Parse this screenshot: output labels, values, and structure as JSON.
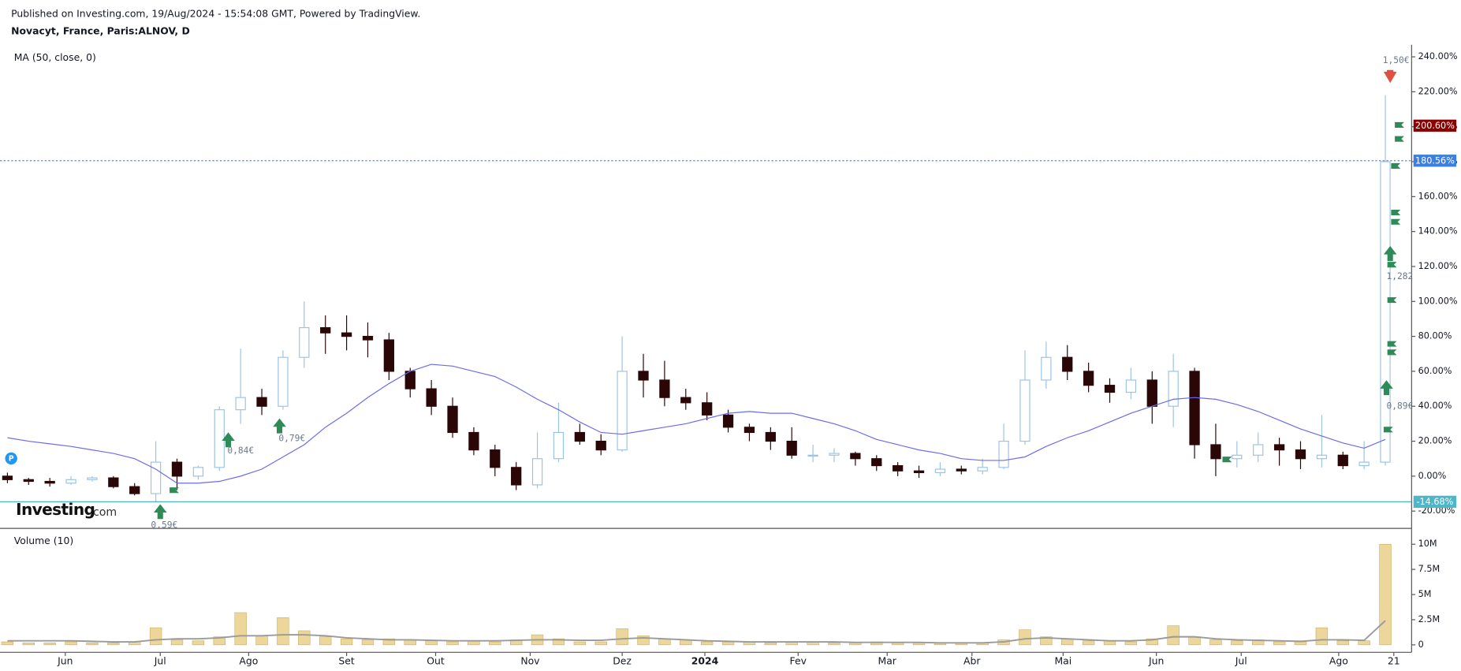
{
  "header": {
    "published": "Published on Investing.com, 19/Aug/2024 - 15:54:08 GMT, Powered by TradingView.",
    "logo": "Investing",
    "logo_suffix": ".com",
    "badge": "P"
  },
  "chart_data": [
    {
      "type": "candlestick",
      "title": "Novacyt, France, Paris:ALNOV, D",
      "xlim": [
        -0.35,
        66.24
      ],
      "ylim": [
        -29.9,
        246.9
      ],
      "yticks": [
        {
          "value": -20,
          "label": "-20.00%"
        },
        {
          "value": 0,
          "label": "0.00%"
        },
        {
          "value": 20,
          "label": "20.00%"
        },
        {
          "value": 40,
          "label": "40.00%"
        },
        {
          "value": 60,
          "label": "60.00%"
        },
        {
          "value": 80,
          "label": "80.00%"
        },
        {
          "value": 100,
          "label": "100.00%"
        },
        {
          "value": 120,
          "label": "120.00%"
        },
        {
          "value": 140,
          "label": "140.00%"
        },
        {
          "value": 160,
          "label": "160.00%"
        },
        {
          "value": 180,
          "label": "180.00%"
        },
        {
          "value": 200,
          "label": "200.00%"
        },
        {
          "value": 220,
          "label": "220.00%"
        },
        {
          "value": 240,
          "label": "240.00%"
        }
      ],
      "up_color": "#9cc3e4",
      "down_color": "#2a0606",
      "open": [
        0,
        -2,
        -3,
        -4,
        -2,
        -1,
        -6,
        -10,
        8,
        0,
        5,
        38,
        45,
        40,
        68,
        85,
        82,
        80,
        78,
        60,
        50,
        40,
        25,
        15,
        5,
        -5,
        10,
        25,
        20,
        15,
        60,
        55,
        45,
        42,
        35,
        28,
        25,
        20,
        12,
        12,
        13,
        10,
        6,
        3,
        2,
        4,
        3,
        5,
        20,
        55,
        68,
        60,
        52,
        48,
        55,
        40,
        60,
        18,
        10,
        12,
        18,
        15,
        10,
        12,
        6,
        8
      ],
      "high": [
        2,
        -1,
        -1,
        0,
        0,
        0,
        -4,
        20,
        10,
        6,
        40,
        73,
        50,
        72,
        100,
        92,
        92,
        88,
        82,
        62,
        55,
        45,
        28,
        18,
        8,
        25,
        42,
        30,
        24,
        80,
        70,
        66,
        50,
        48,
        38,
        30,
        28,
        28,
        18,
        16,
        14,
        12,
        8,
        6,
        8,
        6,
        10,
        30,
        72,
        77,
        75,
        65,
        56,
        62,
        60,
        70,
        62,
        30,
        20,
        25,
        22,
        20,
        35,
        14,
        20,
        218
      ],
      "low": [
        -4,
        -5,
        -6,
        -5,
        -3,
        -7,
        -11,
        -15,
        -8,
        -2,
        3,
        30,
        35,
        38,
        62,
        70,
        72,
        68,
        55,
        45,
        35,
        22,
        12,
        0,
        -8,
        -7,
        8,
        18,
        12,
        14,
        45,
        40,
        38,
        32,
        25,
        20,
        15,
        10,
        8,
        8,
        6,
        3,
        0,
        -1,
        0,
        1,
        1,
        4,
        18,
        50,
        55,
        48,
        42,
        44,
        30,
        28,
        10,
        0,
        5,
        8,
        6,
        4,
        5,
        4,
        4,
        6
      ],
      "close": [
        -2,
        -3,
        -4,
        -2,
        -1,
        -6,
        -10,
        8,
        0,
        5,
        38,
        45,
        40,
        68,
        85,
        82,
        80,
        78,
        60,
        50,
        40,
        25,
        15,
        5,
        -5,
        10,
        25,
        20,
        15,
        60,
        55,
        45,
        42,
        35,
        28,
        25,
        20,
        12,
        12,
        13,
        10,
        6,
        3,
        2,
        4,
        3,
        5,
        20,
        55,
        68,
        60,
        52,
        48,
        55,
        40,
        60,
        18,
        10,
        12,
        18,
        15,
        10,
        12,
        6,
        8,
        180
      ],
      "ma": {
        "name": "MA (50, close, 0)",
        "color": "#6b6bf0",
        "values": [
          22,
          20,
          18.5,
          17,
          15,
          13,
          10,
          4,
          -4,
          -4,
          -3,
          0,
          4,
          11,
          18,
          28,
          36,
          45,
          53,
          60,
          64,
          63,
          60,
          57,
          51,
          44,
          38,
          31,
          25,
          24,
          26,
          28,
          30,
          33,
          36,
          37,
          36,
          36,
          33,
          30,
          26,
          21,
          18,
          15,
          13,
          10,
          9,
          9,
          11,
          17,
          22,
          26,
          31,
          36,
          40,
          44,
          45,
          44,
          41,
          37,
          32,
          27,
          23,
          19,
          16,
          21
        ]
      },
      "price_labels": [
        {
          "value": 200.6,
          "label": "200.60%",
          "color": "#8b0000"
        },
        {
          "value": 180.56,
          "label": "180.56%",
          "color": "#3d7fe0"
        },
        {
          "value": -14.68,
          "label": "-14.68%",
          "color": "#4db6c8"
        }
      ],
      "annotations": [
        "1,50€",
        "1,282",
        "0,89€",
        "0,84€",
        "0,79€",
        "0,59€"
      ]
    },
    {
      "type": "bar",
      "title": "Volume (10)",
      "xlim": [
        -0.35,
        66.24
      ],
      "ylim": [
        -741000,
        11574000
      ],
      "yticks": [
        0,
        {
          "value": 2500000,
          "label": "2.5M"
        },
        {
          "value": 5000000,
          "label": "5M"
        },
        {
          "value": 7500000,
          "label": "7.5M"
        },
        {
          "value": 10000000,
          "label": "10M"
        }
      ],
      "xticks": [
        {
          "value": 2.73,
          "label": "Jun"
        },
        {
          "value": 7.21,
          "label": "Jul"
        },
        {
          "value": 11.38,
          "label": "Ago"
        },
        {
          "value": 16.0,
          "label": "Set"
        },
        {
          "value": 20.2,
          "label": "Out"
        },
        {
          "value": 24.66,
          "label": "Nov"
        },
        {
          "value": 29.0,
          "label": "Dez"
        },
        {
          "value": 32.9,
          "label": "2024"
        },
        {
          "value": 37.3,
          "label": "Fev"
        },
        {
          "value": 41.5,
          "label": "Mar"
        },
        {
          "value": 45.5,
          "label": "Abr"
        },
        {
          "value": 49.8,
          "label": "Mai"
        },
        {
          "value": 54.2,
          "label": "Jun"
        },
        {
          "value": 58.2,
          "label": "Jul"
        },
        {
          "value": 62.8,
          "label": "Ago"
        },
        {
          "value": 65.4,
          "label": "21"
        }
      ],
      "color": "#ecd699",
      "values": [
        300000,
        200000,
        200000,
        300000,
        200000,
        200000,
        300000,
        1700000,
        500000,
        400000,
        800000,
        3200000,
        900000,
        2700000,
        1400000,
        800000,
        600000,
        500000,
        600000,
        500000,
        400000,
        300000,
        400000,
        300000,
        500000,
        1000000,
        600000,
        300000,
        300000,
        1600000,
        900000,
        600000,
        500000,
        300000,
        300000,
        300000,
        200000,
        300000,
        300000,
        200000,
        200000,
        300000,
        200000,
        200000,
        200000,
        200000,
        200000,
        500000,
        1500000,
        800000,
        600000,
        400000,
        400000,
        300000,
        600000,
        1900000,
        800000,
        500000,
        400000,
        500000,
        300000,
        300000,
        1700000,
        400000,
        400000,
        10000000
      ],
      "ma": {
        "color": "#9a9a9a",
        "values": [
          400000,
          400000,
          400000,
          400000,
          350000,
          300000,
          300000,
          500000,
          600000,
          600000,
          700000,
          900000,
          900000,
          1000000,
          1000000,
          900000,
          700000,
          600000,
          500000,
          500000,
          450000,
          400000,
          400000,
          400000,
          450000,
          500000,
          500000,
          450000,
          450000,
          600000,
          700000,
          600000,
          500000,
          400000,
          350000,
          300000,
          300000,
          300000,
          300000,
          300000,
          250000,
          250000,
          250000,
          250000,
          200000,
          200000,
          200000,
          300000,
          600000,
          700000,
          600000,
          500000,
          400000,
          400000,
          500000,
          800000,
          800000,
          600000,
          500000,
          450000,
          400000,
          350000,
          500000,
          500000,
          450000,
          2400000
        ]
      }
    }
  ]
}
